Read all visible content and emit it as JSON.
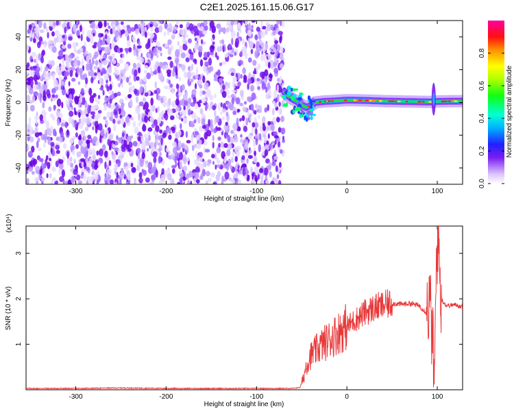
{
  "title": "C2E1.2025.161.15.06.G17",
  "chart_data": [
    {
      "type": "heatmap",
      "xlabel": "Height of straight line (km)",
      "ylabel": "Frequency (Hz)",
      "xlim": [
        -355,
        128
      ],
      "ylim": [
        -50,
        50
      ],
      "x_ticks": [
        -300,
        -200,
        -100,
        0,
        100
      ],
      "y_ticks": [
        -40,
        -20,
        0,
        20,
        40
      ],
      "colorbar": {
        "label": "Normalized spectral amplitude",
        "range": [
          0,
          1
        ],
        "ticks": [
          0.0,
          0.2,
          0.4,
          0.6,
          0.8
        ]
      },
      "features": {
        "noise_region_x": [
          -355,
          -70
        ],
        "transition_x": [
          -70,
          -45
        ],
        "tone_frequency": [
          [
            -70,
            7
          ],
          [
            -65,
            4
          ],
          [
            -60,
            2
          ],
          [
            -55,
            0.5
          ],
          [
            -50,
            -1.5
          ],
          [
            -45,
            -3
          ],
          [
            -40,
            -2
          ],
          [
            -35,
            0
          ],
          [
            -25,
            0.6
          ],
          [
            -10,
            1
          ],
          [
            0,
            1.4
          ],
          [
            20,
            1.2
          ],
          [
            40,
            0.8
          ],
          [
            60,
            0.6
          ],
          [
            80,
            0.4
          ],
          [
            95,
            0.3
          ],
          [
            100,
            0.6
          ],
          [
            128,
            0.8
          ]
        ],
        "spike_x": 96
      }
    },
    {
      "type": "line",
      "xlabel": "Height of straight line (km)",
      "ylabel": "SNR (10 * v/v)",
      "yscale_label": "(x10⁴)",
      "xlim": [
        -355,
        128
      ],
      "ylim": [
        0,
        3.6
      ],
      "x_ticks": [
        -300,
        -200,
        -100,
        0,
        100
      ],
      "y_ticks": [
        1,
        2,
        3
      ],
      "color": "#e8393a",
      "series": [
        {
          "values": [
            [
              -355,
              0.03
            ],
            [
              -300,
              0.03
            ],
            [
              -250,
              0.04
            ],
            [
              -200,
              0.03
            ],
            [
              -150,
              0.03
            ],
            [
              -100,
              0.03
            ],
            [
              -60,
              0.03
            ],
            [
              -52,
              0.05
            ],
            [
              -48,
              0.25
            ],
            [
              -45,
              0.55
            ],
            [
              -40,
              0.75
            ],
            [
              -35,
              0.85
            ],
            [
              -30,
              0.95
            ],
            [
              -20,
              1.1
            ],
            [
              -10,
              1.25
            ],
            [
              0,
              1.4
            ],
            [
              10,
              1.55
            ],
            [
              20,
              1.7
            ],
            [
              30,
              1.8
            ],
            [
              40,
              1.85
            ],
            [
              50,
              1.9
            ],
            [
              60,
              1.88
            ],
            [
              70,
              1.9
            ],
            [
              80,
              1.85
            ],
            [
              88,
              1.7
            ],
            [
              92,
              1.9
            ],
            [
              95,
              1.0
            ],
            [
              97,
              0.1
            ],
            [
              99,
              2.8
            ],
            [
              101,
              3.5
            ],
            [
              104,
              2.0
            ],
            [
              110,
              1.85
            ],
            [
              120,
              1.87
            ],
            [
              128,
              1.82
            ]
          ]
        }
      ]
    }
  ]
}
